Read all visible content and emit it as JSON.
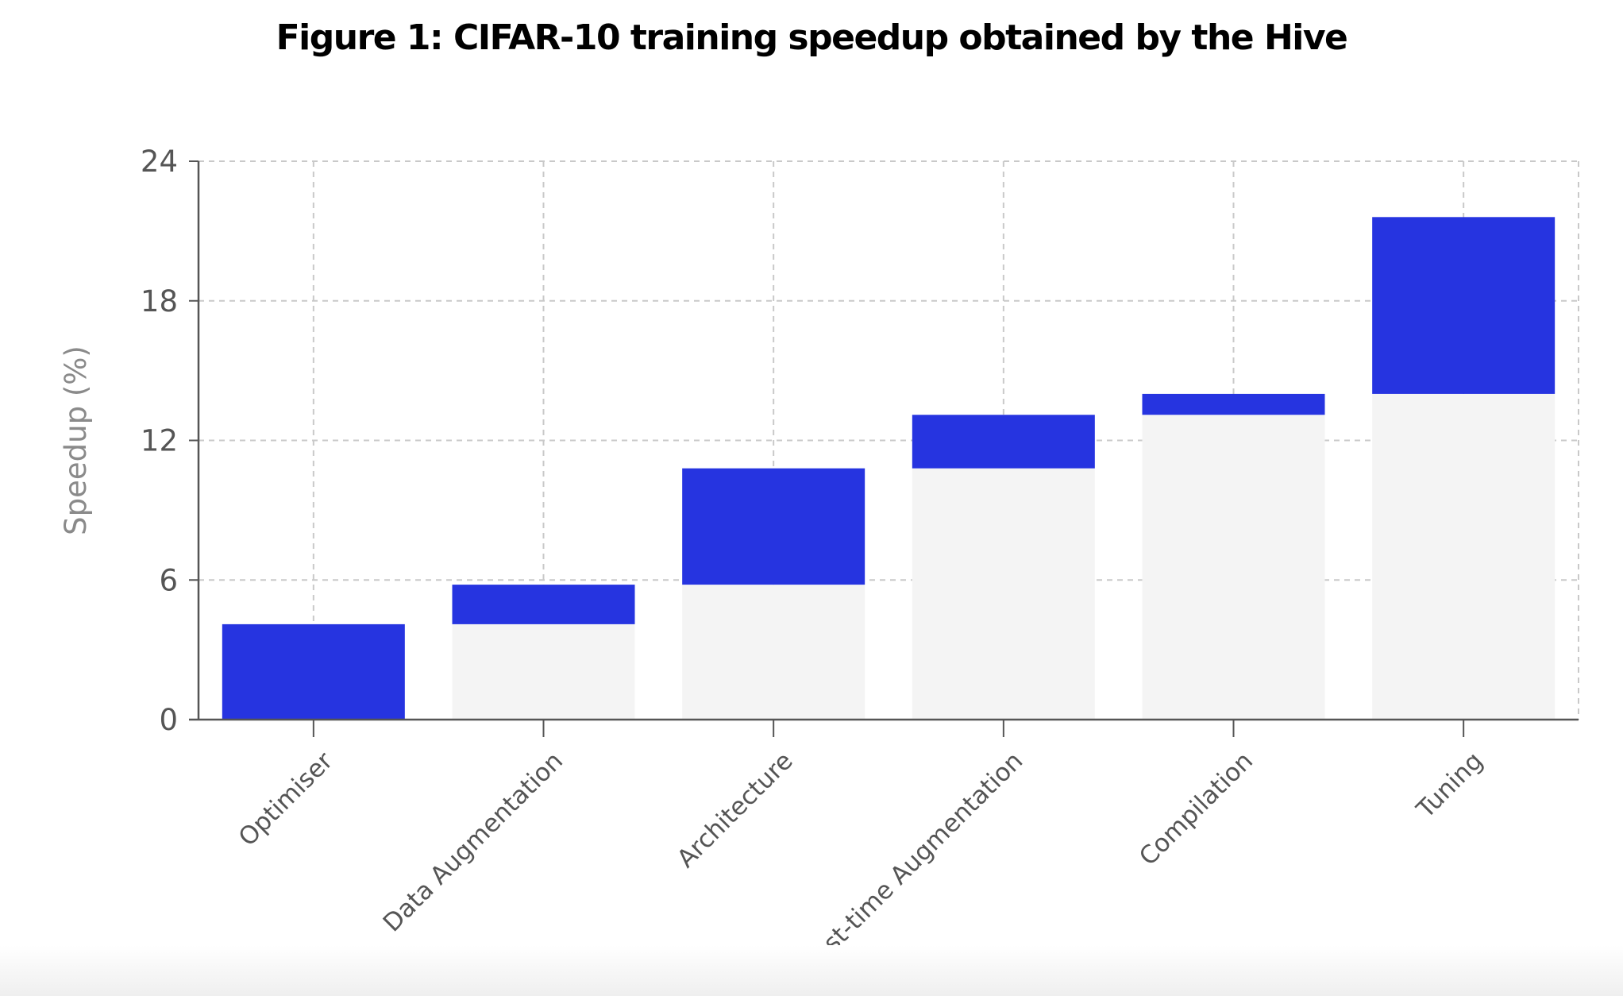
{
  "title": "Figure 1: CIFAR-10 training speedup obtained by the Hive",
  "colors": {
    "increment": "#2634e0",
    "base": "#f4f4f4",
    "grid": "#c9c9c9",
    "axis": "#555555",
    "tick_text": "#555555",
    "axis_title": "#8a8a8a"
  },
  "chart_data": {
    "type": "bar",
    "subtype": "waterfall",
    "title": "Figure 1: CIFAR-10 training speedup obtained by the Hive",
    "xlabel": "",
    "ylabel": "Speedup (%)",
    "ylim": [
      0,
      24
    ],
    "yticks": [
      0,
      6,
      12,
      18,
      24
    ],
    "grid": true,
    "legend": "none",
    "categories": [
      "Optimiser",
      "Data Augmentation",
      "Architecture",
      "Test-time Augmentation",
      "Compilation",
      "Tuning"
    ],
    "series": [
      {
        "role": "base",
        "values": [
          0,
          4.1,
          5.8,
          10.8,
          13.1,
          14.0
        ]
      },
      {
        "role": "increment",
        "values": [
          4.1,
          1.7,
          5.0,
          2.3,
          0.9,
          7.6
        ]
      }
    ],
    "cumulative": [
      4.1,
      5.8,
      10.8,
      13.1,
      14.0,
      21.6
    ]
  }
}
